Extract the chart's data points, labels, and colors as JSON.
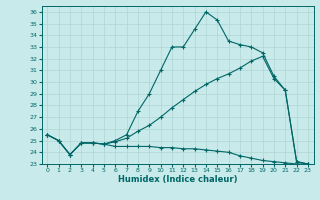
{
  "xlabel": "Humidex (Indice chaleur)",
  "background_color": "#c8eaea",
  "grid_color": "#b0d4d4",
  "line_color": "#006666",
  "xlim": [
    -0.5,
    23.5
  ],
  "ylim": [
    23,
    36.5
  ],
  "xticks": [
    0,
    1,
    2,
    3,
    4,
    5,
    6,
    7,
    8,
    9,
    10,
    11,
    12,
    13,
    14,
    15,
    16,
    17,
    18,
    19,
    20,
    21,
    22,
    23
  ],
  "yticks": [
    23,
    24,
    25,
    26,
    27,
    28,
    29,
    30,
    31,
    32,
    33,
    34,
    35,
    36
  ],
  "curve1_x": [
    0,
    1,
    2,
    3,
    4,
    5,
    6,
    7,
    8,
    9,
    10,
    11,
    12,
    13,
    14,
    15,
    16,
    17,
    18,
    19,
    20,
    21,
    22,
    23
  ],
  "curve1_y": [
    25.5,
    25.0,
    23.8,
    24.8,
    24.8,
    24.7,
    24.5,
    24.5,
    24.5,
    24.5,
    24.4,
    24.4,
    24.3,
    24.3,
    24.2,
    24.1,
    24.0,
    23.7,
    23.5,
    23.3,
    23.2,
    23.1,
    23.0,
    23.0
  ],
  "curve2_x": [
    0,
    1,
    2,
    3,
    4,
    5,
    6,
    7,
    8,
    9,
    10,
    11,
    12,
    13,
    14,
    15,
    16,
    17,
    18,
    19,
    20,
    21,
    22,
    23
  ],
  "curve2_y": [
    25.5,
    25.0,
    23.8,
    24.8,
    24.8,
    24.7,
    25.0,
    25.5,
    27.5,
    29.0,
    31.0,
    33.0,
    33.0,
    34.5,
    36.0,
    35.3,
    33.5,
    33.2,
    33.0,
    32.5,
    30.5,
    29.3,
    23.2,
    23.0
  ],
  "curve3_x": [
    0,
    1,
    2,
    3,
    4,
    5,
    6,
    7,
    8,
    9,
    10,
    11,
    12,
    13,
    14,
    15,
    16,
    17,
    18,
    19,
    20,
    21,
    22,
    23
  ],
  "curve3_y": [
    25.5,
    25.0,
    23.8,
    24.8,
    24.8,
    24.7,
    24.9,
    25.2,
    25.8,
    26.3,
    27.0,
    27.8,
    28.5,
    29.2,
    29.8,
    30.3,
    30.7,
    31.2,
    31.8,
    32.2,
    30.3,
    29.3,
    23.2,
    23.0
  ]
}
